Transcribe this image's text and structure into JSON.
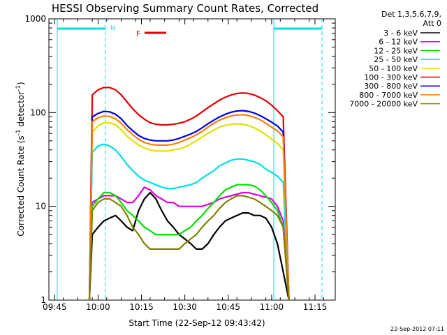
{
  "chart_data": {
    "type": "line",
    "title": "HESSI Observing Summary Count Rates, Corrected",
    "xlabel": "Start Time (22-Sep-12 09:43:42)",
    "ylabel": "Corrected Count Rate (s",
    "ylabel_sup1": "-1",
    "ylabel_mid": " detector",
    "ylabel_sup2": "-1",
    "ylabel_end": ")",
    "y_scale": "log",
    "ylim": [
      1,
      1000
    ],
    "xlim_minutes": [
      -2,
      97
    ],
    "x_ticks": [
      {
        "label": "09:45",
        "min": 0
      },
      {
        "label": "10:00",
        "min": 15
      },
      {
        "label": "10:15",
        "min": 30
      },
      {
        "label": "10:30",
        "min": 45
      },
      {
        "label": "10:45",
        "min": 60
      },
      {
        "label": "11:00",
        "min": 75
      },
      {
        "label": "11:15",
        "min": 90
      }
    ],
    "y_ticks": [
      {
        "label": "1",
        "v": 1
      },
      {
        "label": "10",
        "v": 10
      },
      {
        "label": "100",
        "v": 100
      },
      {
        "label": "1000",
        "v": 1000
      }
    ],
    "legend_header": [
      "Det 1,3,5,6,7,9,",
      "Att 0"
    ],
    "series": [
      {
        "name": "3 - 6 keV",
        "color": "#000000",
        "x": [
          12,
          13,
          15,
          17,
          19,
          21,
          23,
          25,
          27,
          29,
          31,
          33,
          35,
          37,
          39,
          41,
          43,
          45,
          47,
          49,
          51,
          53,
          55,
          57,
          59,
          61,
          63,
          65,
          67,
          69,
          71,
          73,
          75,
          77,
          79,
          81
        ],
        "y": [
          1,
          5,
          6,
          7,
          7.5,
          8,
          7,
          6,
          5.5,
          9,
          12,
          14,
          12,
          9,
          7,
          6,
          5,
          4.5,
          4,
          3.5,
          3.5,
          4,
          5,
          6,
          7,
          7.5,
          8,
          8.5,
          8.5,
          8,
          8,
          7.5,
          6,
          4,
          2,
          1
        ]
      },
      {
        "name": "6 - 12 keV",
        "color": "#e000e0",
        "x": [
          12,
          13,
          15,
          17,
          19,
          21,
          23,
          25,
          27,
          29,
          31,
          33,
          35,
          37,
          39,
          41,
          43,
          45,
          47,
          49,
          51,
          53,
          55,
          57,
          59,
          61,
          63,
          65,
          67,
          69,
          71,
          73,
          75,
          77,
          79,
          81
        ],
        "y": [
          1,
          11,
          12,
          13,
          13,
          13,
          12,
          11,
          11,
          13,
          16,
          15,
          13,
          12,
          11,
          11,
          10,
          10,
          10,
          10,
          10,
          10.5,
          11,
          12,
          12.5,
          13,
          13.5,
          14,
          14,
          13.5,
          13,
          12.5,
          12,
          10,
          7,
          1
        ]
      },
      {
        "name": "12 - 25 keV",
        "color": "#00e000",
        "x": [
          12,
          13,
          15,
          17,
          19,
          21,
          23,
          25,
          27,
          29,
          31,
          33,
          35,
          37,
          39,
          41,
          43,
          45,
          47,
          49,
          51,
          53,
          55,
          57,
          59,
          61,
          63,
          65,
          67,
          69,
          71,
          73,
          75,
          77,
          79,
          81
        ],
        "y": [
          1,
          10,
          12,
          14,
          14,
          13,
          11,
          9,
          8,
          7,
          6,
          5.5,
          5,
          5,
          5,
          5,
          5,
          5.5,
          6,
          7,
          8,
          9.5,
          11,
          13,
          15,
          16,
          17,
          17,
          17,
          16.5,
          15,
          13,
          11,
          9,
          6,
          1
        ]
      },
      {
        "name": "25 - 50 keV",
        "color": "#00e0e0",
        "x": [
          12,
          13,
          15,
          17,
          19,
          21,
          23,
          25,
          27,
          29,
          31,
          33,
          35,
          37,
          39,
          41,
          43,
          45,
          47,
          49,
          51,
          53,
          55,
          57,
          59,
          61,
          63,
          65,
          67,
          69,
          71,
          73,
          75,
          77,
          79,
          81
        ],
        "y": [
          1,
          38,
          44,
          46,
          44,
          40,
          34,
          28,
          24,
          21,
          19,
          18,
          17,
          16,
          15.5,
          15.5,
          16,
          16.5,
          17,
          18,
          20,
          22,
          24,
          27,
          29,
          31,
          32,
          32,
          31,
          30,
          28,
          25,
          23,
          21,
          18,
          1
        ]
      },
      {
        "name": "50 - 100 keV",
        "color": "#e0e000",
        "x": [
          12,
          13,
          15,
          17,
          19,
          21,
          23,
          25,
          27,
          29,
          31,
          33,
          35,
          37,
          39,
          41,
          43,
          45,
          47,
          49,
          51,
          53,
          55,
          57,
          59,
          61,
          63,
          65,
          67,
          69,
          71,
          73,
          75,
          77,
          79,
          81
        ],
        "y": [
          1,
          62,
          72,
          78,
          78,
          74,
          66,
          56,
          50,
          45,
          42,
          40,
          39,
          39,
          39,
          40,
          41,
          43,
          46,
          50,
          55,
          60,
          65,
          70,
          73,
          75,
          76,
          75,
          73,
          69,
          64,
          58,
          52,
          47,
          40,
          1
        ]
      },
      {
        "name": "100 - 300 keV",
        "color": "#e00000",
        "x": [
          12,
          13,
          15,
          17,
          19,
          21,
          23,
          25,
          27,
          29,
          31,
          33,
          35,
          37,
          39,
          41,
          43,
          45,
          47,
          49,
          51,
          53,
          55,
          57,
          59,
          61,
          63,
          65,
          67,
          69,
          71,
          73,
          75,
          77,
          79,
          81
        ],
        "y": [
          1,
          155,
          175,
          185,
          185,
          175,
          155,
          130,
          110,
          95,
          85,
          78,
          75,
          74,
          74,
          75,
          77,
          80,
          85,
          92,
          102,
          113,
          124,
          136,
          146,
          154,
          160,
          162,
          160,
          154,
          145,
          134,
          120,
          105,
          90,
          1
        ]
      },
      {
        "name": "300 - 800 keV",
        "color": "#0000e0",
        "x": [
          12,
          13,
          15,
          17,
          19,
          21,
          23,
          25,
          27,
          29,
          31,
          33,
          35,
          37,
          39,
          41,
          43,
          45,
          47,
          49,
          51,
          53,
          55,
          57,
          59,
          61,
          63,
          65,
          67,
          69,
          71,
          73,
          75,
          77,
          79,
          81
        ],
        "y": [
          1,
          90,
          98,
          103,
          102,
          96,
          86,
          73,
          64,
          57,
          53,
          51,
          50,
          50,
          50,
          51,
          53,
          56,
          59,
          63,
          69,
          76,
          83,
          90,
          96,
          101,
          104,
          105,
          103,
          99,
          93,
          86,
          79,
          72,
          62,
          1
        ]
      },
      {
        "name": "800 - 7000 keV",
        "color": "#ff8000",
        "x": [
          12,
          13,
          15,
          17,
          19,
          21,
          23,
          25,
          27,
          29,
          31,
          33,
          35,
          37,
          39,
          41,
          43,
          45,
          47,
          49,
          51,
          53,
          55,
          57,
          59,
          61,
          63,
          65,
          67,
          69,
          71,
          73,
          75,
          77,
          79,
          81
        ],
        "y": [
          1,
          80,
          88,
          92,
          91,
          86,
          77,
          66,
          58,
          52,
          48,
          46,
          45,
          45,
          45,
          46,
          48,
          51,
          54,
          58,
          63,
          70,
          77,
          83,
          88,
          92,
          94,
          95,
          93,
          89,
          84,
          77,
          70,
          64,
          55,
          1
        ]
      },
      {
        "name": "7000 - 20000 keV",
        "color": "#808000",
        "x": [
          12,
          13,
          15,
          17,
          19,
          21,
          23,
          25,
          27,
          29,
          31,
          33,
          35,
          37,
          39,
          41,
          43,
          45,
          47,
          49,
          51,
          53,
          55,
          57,
          59,
          61,
          63,
          65,
          67,
          69,
          71,
          73,
          75,
          77,
          79,
          81
        ],
        "y": [
          1,
          9,
          11,
          12,
          12,
          11,
          10,
          8,
          6,
          5,
          4,
          3.5,
          3.5,
          3.5,
          3.5,
          3.5,
          3.5,
          4,
          4.5,
          5,
          6,
          7,
          8,
          9.5,
          11,
          12,
          13,
          13,
          12.5,
          12,
          11,
          10,
          9,
          8,
          6,
          1
        ]
      }
    ],
    "annotations": [
      {
        "label": "N",
        "color": "#00e0e0"
      },
      {
        "label": "F",
        "color": "#e00000"
      }
    ],
    "timestamp": "22-Sep-2012 07:11"
  }
}
